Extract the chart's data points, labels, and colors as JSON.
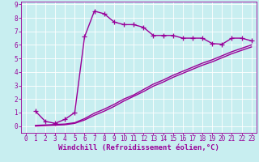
{
  "background_color": "#c8eef0",
  "grid_color": "#ffffff",
  "line_color": "#990099",
  "marker": "+",
  "markersize": 4,
  "linewidth": 1.0,
  "curve1_x": [
    1,
    2,
    3,
    4,
    5,
    6,
    7,
    8,
    9,
    10,
    11,
    12,
    13,
    14,
    15,
    16,
    17,
    18,
    19,
    20,
    21,
    22,
    23
  ],
  "curve1_y": [
    1.1,
    0.35,
    0.2,
    0.5,
    1.0,
    6.6,
    8.5,
    8.3,
    7.7,
    7.5,
    7.5,
    7.3,
    6.7,
    6.7,
    6.7,
    6.5,
    6.5,
    6.5,
    6.1,
    6.05,
    6.5,
    6.5,
    6.3
  ],
  "curve2_x": [
    1,
    4,
    5,
    6,
    7,
    8,
    9,
    10,
    11,
    12,
    13,
    14,
    15,
    16,
    17,
    18,
    19,
    20,
    21,
    22,
    23
  ],
  "curve2_y": [
    0.05,
    0.15,
    0.25,
    0.55,
    0.95,
    1.25,
    1.6,
    2.0,
    2.3,
    2.7,
    3.1,
    3.4,
    3.75,
    4.05,
    4.35,
    4.65,
    4.9,
    5.2,
    5.5,
    5.75,
    6.0
  ],
  "curve3_x": [
    1,
    4,
    5,
    6,
    7,
    8,
    9,
    10,
    11,
    12,
    13,
    14,
    15,
    16,
    17,
    18,
    19,
    20,
    21,
    22,
    23
  ],
  "curve3_y": [
    0.0,
    0.1,
    0.2,
    0.45,
    0.8,
    1.1,
    1.45,
    1.85,
    2.2,
    2.55,
    2.95,
    3.25,
    3.6,
    3.9,
    4.2,
    4.5,
    4.75,
    5.05,
    5.35,
    5.6,
    5.85
  ],
  "xlabel": "Windchill (Refroidissement éolien,°C)",
  "xlabel_fontsize": 6.5,
  "xlabel_color": "#990099",
  "xlim": [
    -0.5,
    23.5
  ],
  "ylim": [
    -0.5,
    9.2
  ],
  "xticks": [
    0,
    1,
    2,
    3,
    4,
    5,
    6,
    7,
    8,
    9,
    10,
    11,
    12,
    13,
    14,
    15,
    16,
    17,
    18,
    19,
    20,
    21,
    22,
    23
  ],
  "yticks": [
    0,
    1,
    2,
    3,
    4,
    5,
    6,
    7,
    8,
    9
  ],
  "tick_fontsize": 5.5,
  "tick_color": "#990099",
  "xlabel_fontweight": "bold"
}
